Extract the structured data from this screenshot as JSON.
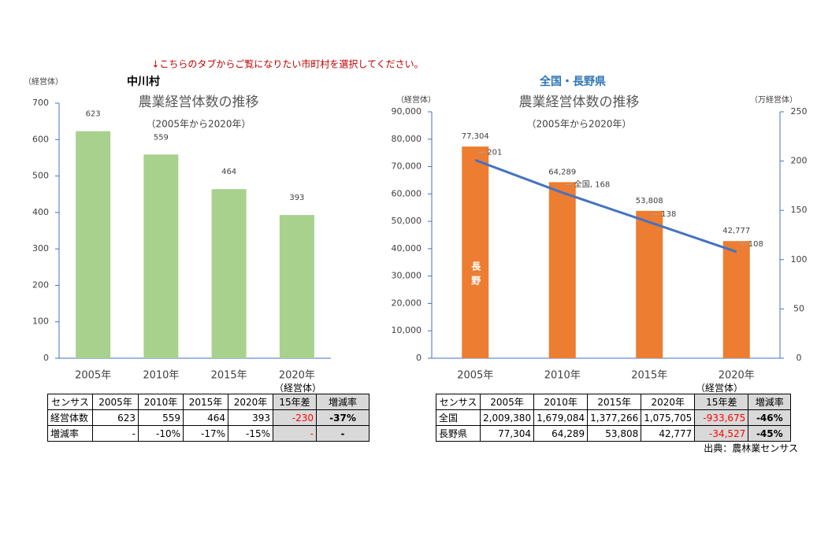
{
  "notice": "↓こちらのタブからご覧になりたい市町村を選択してください。",
  "source": "出典：農林業センサス",
  "chart_data": [
    {
      "type": "bar",
      "header": "中川村",
      "title": "農業経営体数の推移",
      "subtitle": "（2005年から2020年）",
      "y_label": "（経営体）",
      "categories": [
        "2005年",
        "2010年",
        "2015年",
        "2020年"
      ],
      "values": [
        623,
        559,
        464,
        393
      ],
      "color": "#a9d18e",
      "ylim": [
        0,
        700
      ],
      "yticks": [
        0,
        100,
        200,
        300,
        400,
        500,
        600,
        700
      ]
    },
    {
      "type": "combo",
      "header": "全国・長野県",
      "title": "農業経営体数の推移",
      "subtitle": "（2005年から2020年）",
      "y_label": "（経営体）",
      "y2_label": "（万経営体）",
      "categories": [
        "2005年",
        "2010年",
        "2015年",
        "2020年"
      ],
      "series": [
        {
          "name": "長野",
          "type": "bar",
          "color": "#ed7d31",
          "values": [
            77304,
            64289,
            53808,
            42777
          ],
          "value_labels": [
            "77,304",
            "64,289",
            "53,808",
            "42,777"
          ]
        },
        {
          "name": "全国",
          "type": "line",
          "axis": "y2",
          "color": "#4472c4",
          "values": [
            201,
            168,
            138,
            108
          ],
          "value_labels": [
            "201",
            "全国, 168",
            "138",
            "108"
          ]
        }
      ],
      "ylim": [
        0,
        90000
      ],
      "yticks": [
        0,
        {
          "value": 10000,
          "label": "10,000"
        },
        {
          "value": 20000,
          "label": "20,000"
        },
        {
          "value": 30000,
          "label": "30,000"
        },
        {
          "value": 40000,
          "label": "40,000"
        },
        {
          "value": 50000,
          "label": "50,000"
        },
        {
          "value": 60000,
          "label": "60,000"
        },
        {
          "value": 70000,
          "label": "70,000"
        },
        {
          "value": 80000,
          "label": "80,000"
        },
        {
          "value": 90000,
          "label": "90,000"
        }
      ],
      "y2lim": [
        0,
        250
      ],
      "y2ticks": [
        0,
        50,
        100,
        150,
        200,
        250
      ]
    }
  ],
  "tables": [
    {
      "caption": "（経営体）",
      "header": [
        "センサス",
        "2005年",
        "2010年",
        "2015年",
        "2020年",
        "15年差",
        "増減率"
      ],
      "rows": [
        [
          "経営体数",
          "623",
          "559",
          "464",
          "393",
          "-230",
          "-37%"
        ],
        [
          "増減率",
          "-",
          "-10%",
          "-17%",
          "-15%",
          "-",
          "-"
        ]
      ]
    },
    {
      "caption": "（経営体）",
      "header": [
        "センサス",
        "2005年",
        "2010年",
        "2015年",
        "2020年",
        "15年差",
        "増減率"
      ],
      "rows": [
        [
          "全国",
          "2,009,380",
          "1,679,084",
          "1,377,266",
          "1,075,705",
          "-933,675",
          "-46%"
        ],
        [
          "長野県",
          "77,304",
          "64,289",
          "53,808",
          "42,777",
          "-34,527",
          "-45%"
        ]
      ]
    }
  ]
}
